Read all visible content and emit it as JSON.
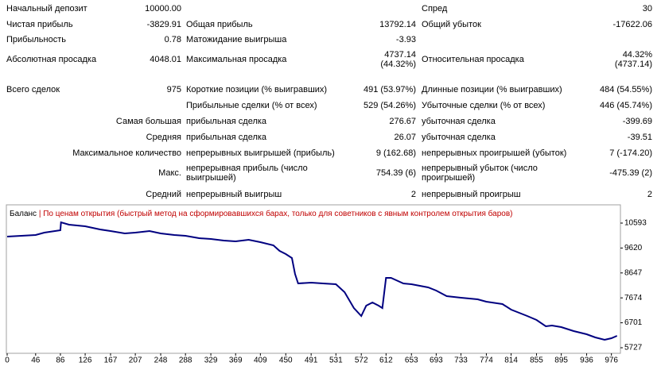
{
  "table": {
    "rows": [
      [
        "Начальный депозит",
        "10000.00",
        null,
        null,
        "Спред",
        "30"
      ],
      [
        "Чистая прибыль",
        "-3829.91",
        "Общая прибыль",
        "13792.14",
        "Общий убыток",
        "-17622.06"
      ],
      [
        "Прибыльность",
        "0.78",
        "Матожидание выигрыша",
        "-3.93",
        null,
        null
      ],
      [
        "Абсолютная просадка",
        "4048.01",
        "Максимальная просадка",
        "4737.14 (44.32%)",
        "Относительная просадка",
        "44.32% (4737.14)"
      ],
      [
        "Всего сделок",
        "975",
        "Короткие позиции (% выигравших)",
        "491 (53.97%)",
        "Длинные позиции (% выигравших)",
        "484 (54.55%)"
      ],
      [
        null,
        null,
        "Прибыльные сделки (% от всех)",
        "529 (54.26%)",
        "Убыточные сделки (% от всех)",
        "446 (45.74%)"
      ],
      [
        null,
        "Самая большая",
        "прибыльная сделка",
        "276.67",
        "убыточная сделка",
        "-399.69"
      ],
      [
        null,
        "Средняя",
        "прибыльная сделка",
        "26.07",
        "убыточная сделка",
        "-39.51"
      ],
      [
        null,
        "Максимальное количество",
        "непрерывных выигрышей (прибыль)",
        "9 (162.68)",
        "непрерывных проигрышей (убыток)",
        "7 (-174.20)"
      ],
      [
        null,
        "Макс.",
        "непрерывная прибыль (число выигрышей)",
        "754.39 (6)",
        "непрерывный убыток (число проигрышей)",
        "-475.39 (2)"
      ],
      [
        null,
        "Средний",
        "непрерывный выигрыш",
        "2",
        "непрерывный проигрыш",
        "2"
      ]
    ]
  },
  "chart_data": {
    "type": "line",
    "legend": "Баланс",
    "subtitle": " | По ценам открытия (быстрый метод на сформировавшихся барах, только для советников с явным контролем открытия баров)",
    "x": [
      0,
      46,
      60,
      86,
      87,
      100,
      126,
      150,
      167,
      190,
      207,
      230,
      248,
      270,
      288,
      310,
      329,
      350,
      369,
      390,
      409,
      430,
      440,
      450,
      460,
      465,
      470,
      491,
      510,
      531,
      545,
      560,
      572,
      580,
      590,
      600,
      606,
      612,
      620,
      640,
      653,
      680,
      693,
      710,
      733,
      760,
      774,
      800,
      814,
      840,
      855,
      870,
      880,
      895,
      915,
      936,
      950,
      965,
      976,
      985
    ],
    "series": [
      {
        "name": "Баланс",
        "color": "#000080",
        "values": [
          10066,
          10128,
          10221,
          10314,
          10624,
          10531,
          10469,
          10345,
          10283,
          10190,
          10221,
          10283,
          10190,
          10128,
          10097,
          10004,
          9973,
          9911,
          9880,
          9942,
          9849,
          9725,
          9508,
          9384,
          9229,
          8610,
          8238,
          8269,
          8238,
          8207,
          7897,
          7277,
          6967,
          7370,
          7494,
          7370,
          7277,
          8455,
          8455,
          8238,
          8207,
          8083,
          7959,
          7742,
          7680,
          7618,
          7525,
          7432,
          7215,
          6967,
          6812,
          6564,
          6595,
          6533,
          6378,
          6254,
          6130,
          6037,
          6099,
          6193
        ]
      }
    ],
    "xlim": [
      0,
      988
    ],
    "ylim": [
      5541,
      11244
    ],
    "xticks": [
      0,
      46,
      86,
      126,
      167,
      207,
      248,
      288,
      329,
      369,
      409,
      450,
      491,
      531,
      572,
      612,
      653,
      693,
      733,
      774,
      814,
      855,
      895,
      936,
      976
    ],
    "yticks": [
      10593,
      9620,
      8647,
      7674,
      6701,
      5727
    ]
  }
}
